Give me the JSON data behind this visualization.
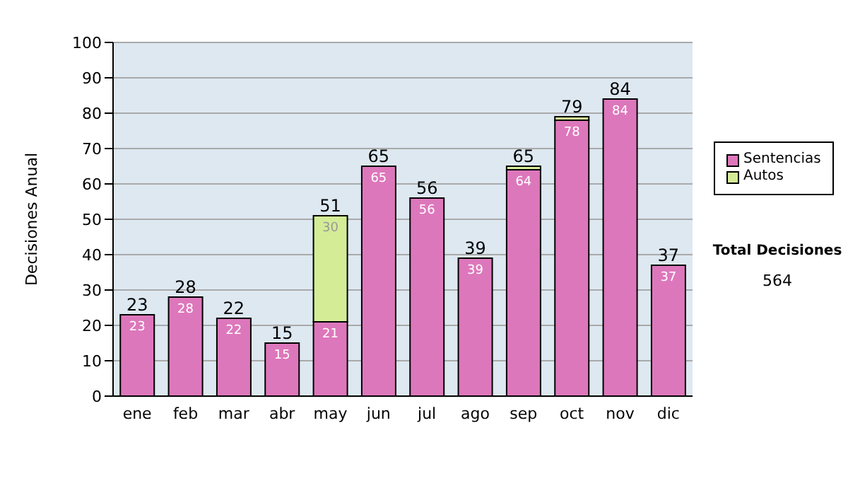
{
  "chart_data": {
    "type": "bar",
    "stacked": true,
    "ylabel": "Decisiones Anual",
    "categories": [
      "ene",
      "feb",
      "mar",
      "abr",
      "may",
      "jun",
      "jul",
      "ago",
      "sep",
      "oct",
      "nov",
      "dic"
    ],
    "series": [
      {
        "name": "Sentencias",
        "color": "#dd77bb",
        "values": [
          23,
          28,
          22,
          15,
          21,
          65,
          56,
          39,
          64,
          78,
          84,
          37
        ],
        "value_labels": [
          "23",
          "28",
          "22",
          "15",
          "21",
          "65",
          "56",
          "39",
          "64",
          "78",
          "84",
          "37"
        ]
      },
      {
        "name": "Autos",
        "color": "#d4ec96",
        "values": [
          0,
          0,
          0,
          0,
          30,
          0,
          0,
          0,
          1,
          1,
          0,
          0
        ],
        "value_labels": [
          null,
          null,
          null,
          null,
          "30",
          null,
          null,
          null,
          null,
          null,
          null,
          null
        ]
      }
    ],
    "totals": [
      "23",
      "28",
      "22",
      "15",
      "51",
      "65",
      "56",
      "39",
      "65",
      "79",
      "84",
      "37"
    ],
    "ylim": [
      0,
      100
    ],
    "yticks": [
      0,
      10,
      20,
      30,
      40,
      50,
      60,
      70,
      80,
      90,
      100
    ],
    "grid": "y",
    "legend": "right",
    "annotations": [
      "Total Decisiones",
      "564"
    ]
  }
}
